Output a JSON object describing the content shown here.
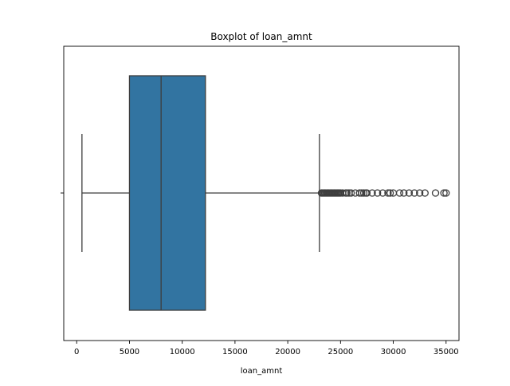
{
  "chart_data": {
    "type": "boxplot",
    "title": "Boxplot of loan_amnt",
    "xlabel": "loan_amnt",
    "ylabel": "",
    "xlim": [
      -1225,
      36225
    ],
    "x_ticks": [
      0,
      5000,
      10000,
      15000,
      20000,
      25000,
      30000,
      35000
    ],
    "x_tick_labels": [
      "0",
      "5000",
      "10000",
      "15000",
      "20000",
      "25000",
      "30000",
      "35000"
    ],
    "grid": false,
    "series": [
      {
        "whisker_low": 500,
        "q1": 5000,
        "median": 8000,
        "q3": 12200,
        "whisker_high": 23000,
        "outliers": [
          23200,
          23300,
          23400,
          23500,
          23600,
          23700,
          23800,
          23900,
          24000,
          24100,
          24200,
          24300,
          24400,
          24500,
          24600,
          24700,
          24800,
          24900,
          25000,
          25200,
          25500,
          25600,
          25800,
          26000,
          26400,
          26800,
          27000,
          27200,
          27400,
          27500,
          28000,
          28500,
          29000,
          29500,
          29700,
          30000,
          30600,
          31000,
          31500,
          32000,
          32500,
          33000,
          34000,
          34800,
          35000
        ]
      }
    ],
    "colors": {
      "box_fill": "#3274a1",
      "line": "#3d3d3d"
    }
  }
}
